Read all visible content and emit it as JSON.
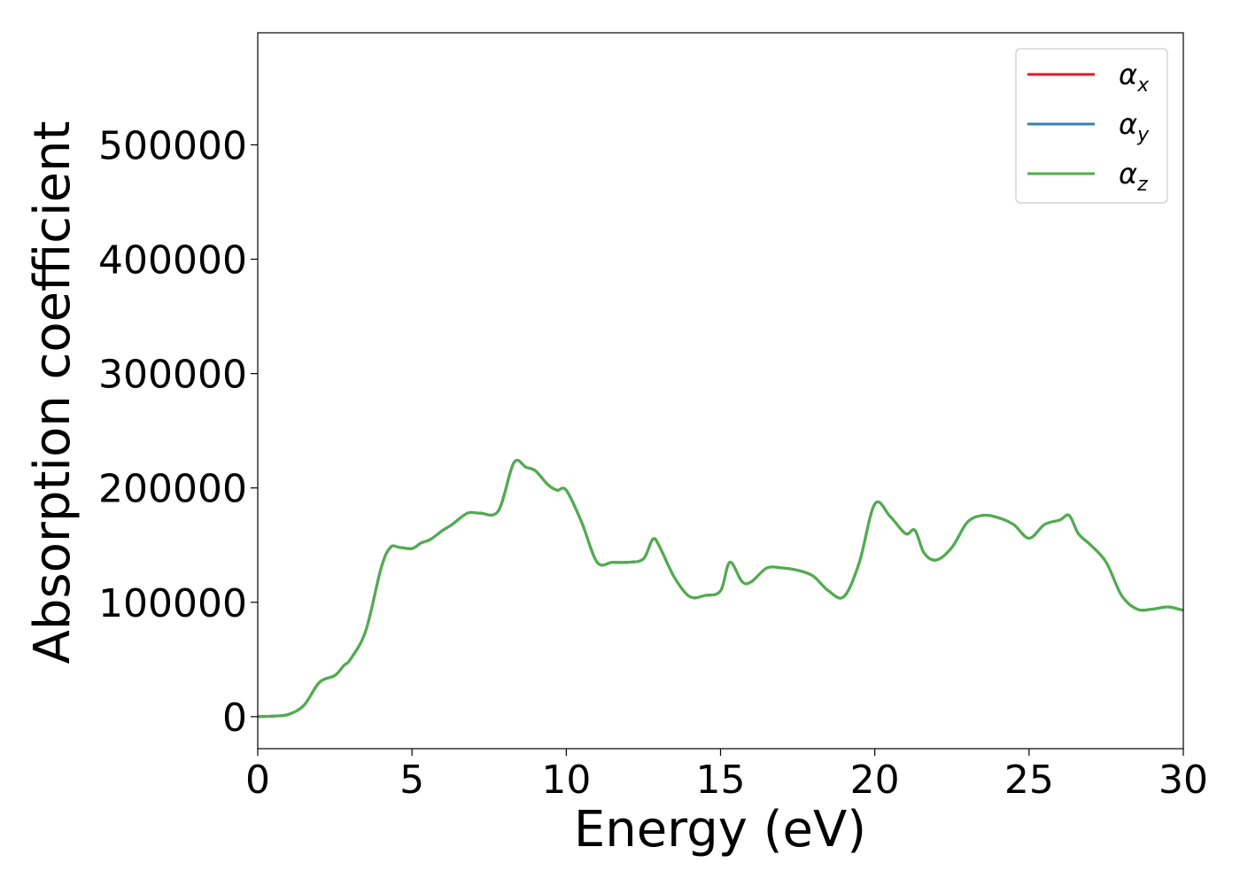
{
  "chart_data": {
    "type": "line",
    "title": "",
    "xlabel": "Energy (eV)",
    "ylabel": "Absorption coefficient",
    "xlim": [
      0,
      30
    ],
    "ylim": [
      -28000,
      598000
    ],
    "xticks": [
      0,
      5,
      10,
      15,
      20,
      25,
      30
    ],
    "yticks": [
      0,
      100000,
      200000,
      300000,
      400000,
      500000
    ],
    "grid": false,
    "legend_position": "top-right",
    "colors": {
      "alpha_x": "#e41a1c",
      "alpha_y": "#377eb8",
      "alpha_z": "#4daf4a"
    },
    "x": [
      0,
      0.5,
      1.0,
      1.5,
      2.0,
      2.5,
      2.8,
      3.0,
      3.5,
      4.0,
      4.3,
      4.6,
      5.0,
      5.3,
      5.6,
      6.0,
      6.3,
      6.8,
      7.2,
      7.8,
      8.3,
      8.7,
      9.0,
      9.4,
      9.7,
      10.0,
      10.5,
      11.0,
      11.5,
      12.0,
      12.5,
      12.8,
      13.0,
      13.5,
      14.0,
      14.5,
      15.0,
      15.3,
      15.7,
      16.0,
      16.5,
      17.0,
      17.5,
      18.0,
      18.5,
      19.0,
      19.5,
      20.0,
      20.5,
      21.0,
      21.3,
      21.6,
      22.0,
      22.5,
      23.0,
      23.5,
      24.0,
      24.5,
      25.0,
      25.5,
      26.0,
      26.3,
      26.6,
      27.0,
      27.5,
      28.0,
      28.5,
      29.0,
      29.5,
      30.0
    ],
    "series": [
      {
        "name": "αx",
        "color": "#e41a1c",
        "values": [
          0,
          500,
          2000,
          10000,
          30000,
          36000,
          45000,
          50000,
          75000,
          130000,
          148000,
          148000,
          147000,
          152000,
          155000,
          163000,
          168000,
          178000,
          178000,
          180000,
          222000,
          218000,
          215000,
          203000,
          198000,
          198000,
          170000,
          135000,
          135000,
          135000,
          138000,
          155000,
          150000,
          122000,
          105000,
          106000,
          110000,
          135000,
          118000,
          118000,
          130000,
          130000,
          128000,
          123000,
          110000,
          105000,
          135000,
          186000,
          175000,
          160000,
          163000,
          143000,
          137000,
          148000,
          170000,
          176000,
          174000,
          168000,
          156000,
          168000,
          172000,
          176000,
          160000,
          150000,
          135000,
          106000,
          94000,
          94000,
          96000,
          93000
        ]
      },
      {
        "name": "αy",
        "color": "#377eb8",
        "values": [
          0,
          500,
          2000,
          10000,
          30000,
          36000,
          45000,
          50000,
          75000,
          130000,
          148000,
          148000,
          147000,
          152000,
          155000,
          163000,
          168000,
          178000,
          178000,
          180000,
          222000,
          218000,
          215000,
          203000,
          198000,
          198000,
          170000,
          135000,
          135000,
          135000,
          138000,
          155000,
          150000,
          122000,
          105000,
          106000,
          110000,
          135000,
          118000,
          118000,
          130000,
          130000,
          128000,
          123000,
          110000,
          105000,
          135000,
          186000,
          175000,
          160000,
          163000,
          143000,
          137000,
          148000,
          170000,
          176000,
          174000,
          168000,
          156000,
          168000,
          172000,
          176000,
          160000,
          150000,
          135000,
          106000,
          94000,
          94000,
          96000,
          93000
        ]
      },
      {
        "name": "αz",
        "color": "#4daf4a",
        "values": [
          0,
          500,
          2000,
          10000,
          30000,
          36000,
          45000,
          50000,
          75000,
          130000,
          148000,
          148000,
          147000,
          152000,
          155000,
          163000,
          168000,
          178000,
          178000,
          180000,
          222000,
          218000,
          215000,
          203000,
          198000,
          198000,
          170000,
          135000,
          135000,
          135000,
          138000,
          155000,
          150000,
          122000,
          105000,
          106000,
          110000,
          135000,
          118000,
          118000,
          130000,
          130000,
          128000,
          123000,
          110000,
          105000,
          135000,
          186000,
          175000,
          160000,
          163000,
          143000,
          137000,
          148000,
          170000,
          176000,
          174000,
          168000,
          156000,
          168000,
          172000,
          176000,
          160000,
          150000,
          135000,
          106000,
          94000,
          94000,
          96000,
          93000
        ]
      }
    ],
    "legend": [
      {
        "symbol": "α",
        "sub": "x",
        "color": "#e41a1c"
      },
      {
        "symbol": "α",
        "sub": "y",
        "color": "#377eb8"
      },
      {
        "symbol": "α",
        "sub": "z",
        "color": "#4daf4a"
      }
    ]
  }
}
